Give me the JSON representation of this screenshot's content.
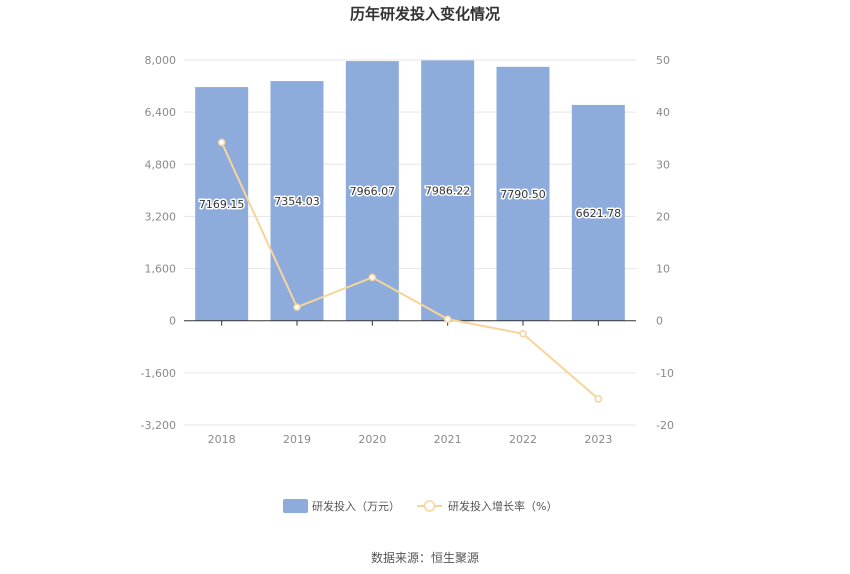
{
  "title": "历年研发投入变化情况",
  "source": "数据来源：恒生聚源",
  "legend": {
    "bar_label": "研发投入（万元）",
    "line_label": "研发投入增长率（%）"
  },
  "colors": {
    "bar": "#8eacdb",
    "line": "#f7d49a",
    "grid": "#e6e6e6",
    "axis": "#333333"
  },
  "chart_data": {
    "type": "bar",
    "title": "历年研发投入变化情况",
    "categories": [
      "2018",
      "2019",
      "2020",
      "2021",
      "2022",
      "2023"
    ],
    "series": [
      {
        "name": "研发投入（万元）",
        "type": "bar",
        "axis": "left",
        "values": [
          7169.15,
          7354.03,
          7966.07,
          7986.22,
          7790.5,
          6621.78
        ],
        "labels": [
          "7169.15",
          "7354.03",
          "7966.07",
          "7986.22",
          "7790.50",
          "6621.78"
        ]
      },
      {
        "name": "研发投入增长率（%）",
        "type": "line",
        "axis": "right",
        "values": [
          34.2,
          2.6,
          8.3,
          0.3,
          -2.5,
          -15.0
        ]
      }
    ],
    "left_axis": {
      "ylim": [
        -3200,
        8000
      ],
      "ticks": [
        8000,
        6400,
        4800,
        3200,
        1600,
        0,
        -1600,
        -3200
      ],
      "tick_labels": [
        "8,000",
        "6,400",
        "4,800",
        "3,200",
        "1,600",
        "0",
        "-1,600",
        "-3,200"
      ]
    },
    "right_axis": {
      "ylim": [
        -20,
        50
      ],
      "ticks": [
        50,
        40,
        30,
        20,
        10,
        0,
        -10,
        -20
      ],
      "tick_labels": [
        "50",
        "40",
        "30",
        "20",
        "10",
        "0",
        "-10",
        "-20"
      ]
    },
    "grid": true,
    "legend_position": "bottom"
  }
}
